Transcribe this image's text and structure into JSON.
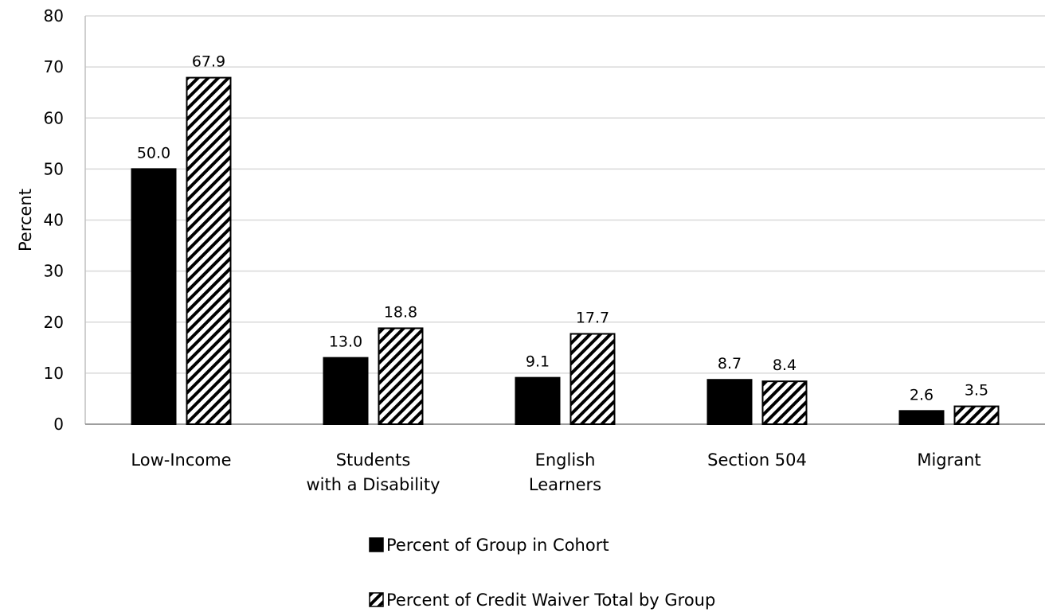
{
  "chart_data": {
    "type": "bar",
    "title": "",
    "ylabel": "Percent",
    "xlabel": "",
    "ylim": [
      0,
      80
    ],
    "yticks": [
      0,
      10,
      20,
      30,
      40,
      50,
      60,
      70,
      80
    ],
    "grid": true,
    "legend_position": "bottom",
    "categories": [
      [
        "Low-Income"
      ],
      [
        "Students",
        "with a Disability"
      ],
      [
        "English",
        "Learners"
      ],
      [
        "Section 504"
      ],
      [
        "Migrant"
      ]
    ],
    "series": [
      {
        "name": "Percent of Group in Cohort",
        "fill": "solid",
        "color": "#000000",
        "values": [
          50.0,
          13.0,
          9.1,
          8.7,
          2.6
        ],
        "labels": [
          "50.0",
          "13.0",
          "9.1",
          "8.7",
          "2.6"
        ]
      },
      {
        "name": "Percent of Credit Waiver Total by Group",
        "fill": "hatched",
        "color": "#000000",
        "values": [
          67.9,
          18.8,
          17.7,
          8.4,
          3.5
        ],
        "labels": [
          "67.9",
          "18.8",
          "17.7",
          "8.4",
          "3.5"
        ]
      }
    ]
  }
}
